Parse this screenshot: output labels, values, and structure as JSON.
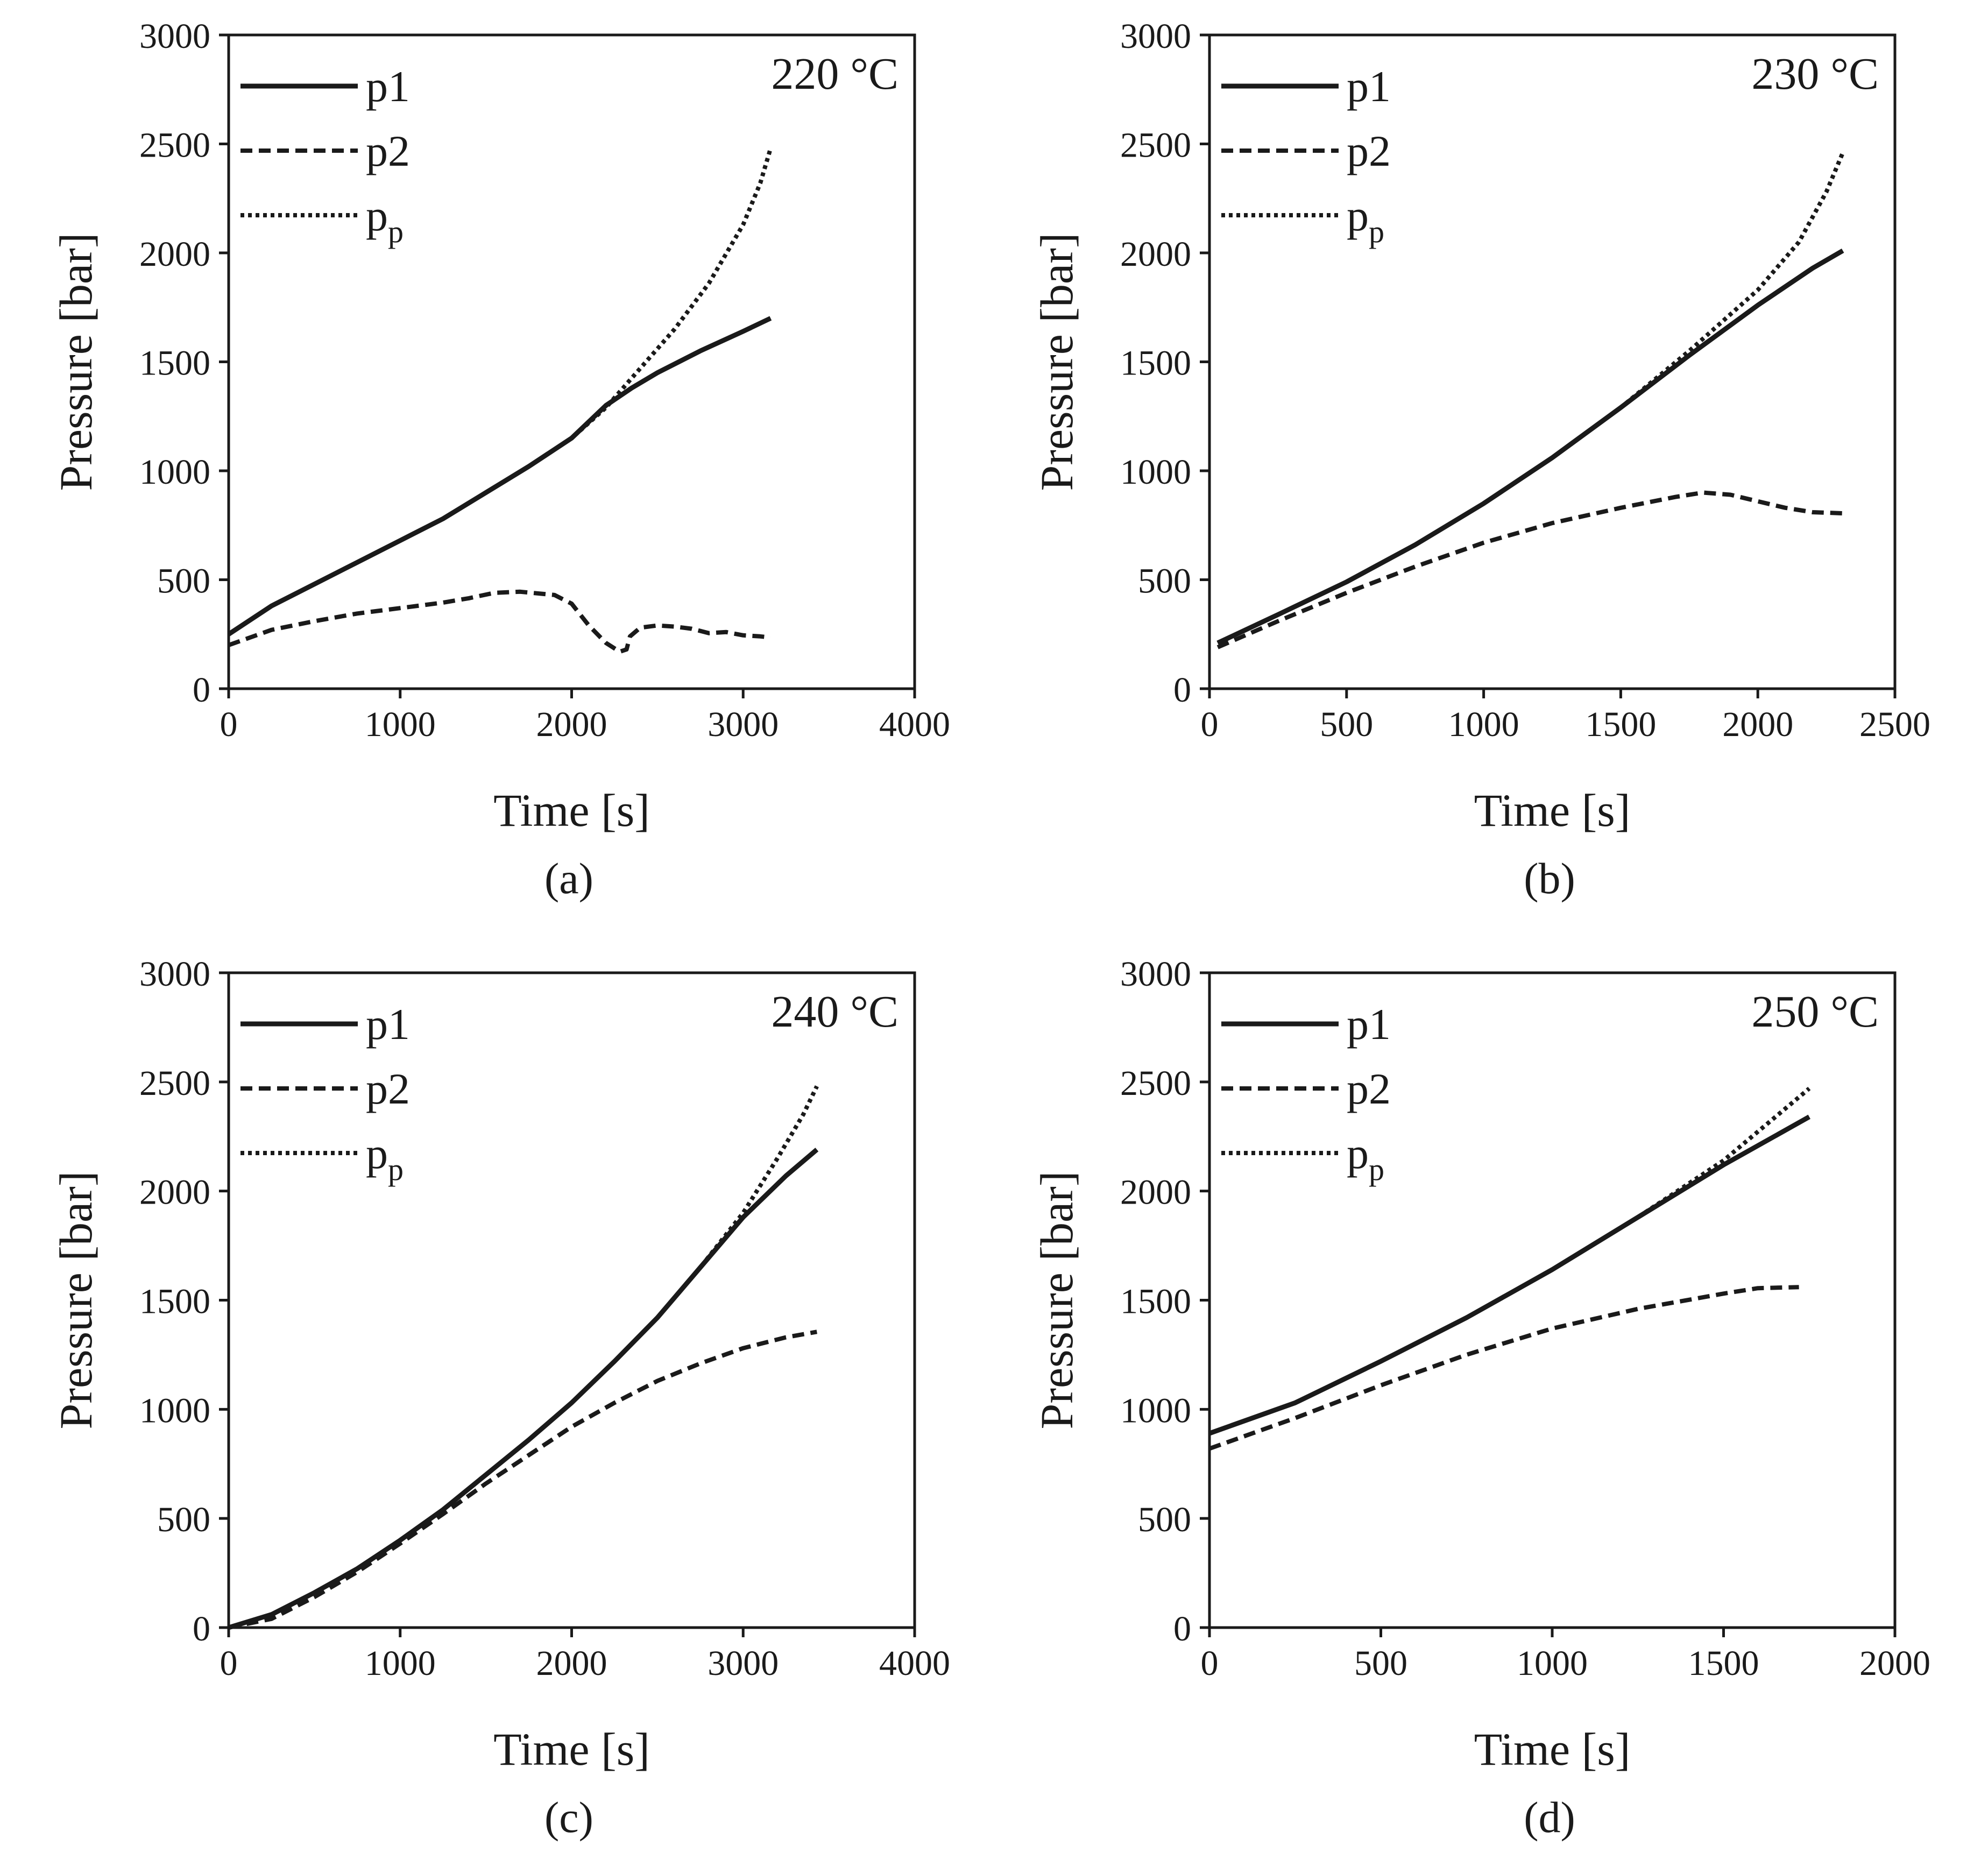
{
  "figure_captions": [
    "(a)",
    "(b)",
    "(c)",
    "(d)"
  ],
  "colors": {
    "line": "#1a1a1a",
    "background": "#ffffff"
  },
  "chart_data": [
    {
      "type": "line",
      "panel": "(a)",
      "title": "220 °C",
      "xlabel": "Time [s]",
      "ylabel": "Pressure [bar]",
      "xlim": [
        0,
        4000
      ],
      "ylim": [
        0,
        3000
      ],
      "xticks": [
        0,
        1000,
        2000,
        3000,
        4000
      ],
      "yticks": [
        0,
        500,
        1000,
        1500,
        2000,
        2500,
        3000
      ],
      "legend": {
        "position": "top-left",
        "entries": [
          {
            "main": "p1",
            "sub": "",
            "style": "solid"
          },
          {
            "main": "p2",
            "sub": "",
            "style": "dashed"
          },
          {
            "main": "p",
            "sub": "p",
            "style": "dotted"
          }
        ]
      },
      "series": [
        {
          "name": "p1",
          "style": "solid",
          "points": [
            [
              0,
              250
            ],
            [
              250,
              380
            ],
            [
              500,
              480
            ],
            [
              750,
              580
            ],
            [
              1000,
              680
            ],
            [
              1250,
              780
            ],
            [
              1500,
              900
            ],
            [
              1750,
              1020
            ],
            [
              2000,
              1150
            ],
            [
              2200,
              1300
            ],
            [
              2350,
              1380
            ],
            [
              2500,
              1450
            ],
            [
              2750,
              1550
            ],
            [
              3000,
              1640
            ],
            [
              3160,
              1700
            ]
          ]
        },
        {
          "name": "p2",
          "style": "dashed",
          "points": [
            [
              0,
              200
            ],
            [
              250,
              270
            ],
            [
              500,
              310
            ],
            [
              750,
              345
            ],
            [
              1000,
              370
            ],
            [
              1250,
              395
            ],
            [
              1400,
              415
            ],
            [
              1550,
              440
            ],
            [
              1700,
              445
            ],
            [
              1900,
              430
            ],
            [
              2000,
              390
            ],
            [
              2100,
              290
            ],
            [
              2200,
              210
            ],
            [
              2280,
              170
            ],
            [
              2320,
              180
            ],
            [
              2340,
              240
            ],
            [
              2400,
              280
            ],
            [
              2500,
              290
            ],
            [
              2600,
              285
            ],
            [
              2700,
              275
            ],
            [
              2800,
              255
            ],
            [
              2900,
              260
            ],
            [
              3000,
              245
            ],
            [
              3100,
              240
            ],
            [
              3160,
              235
            ]
          ]
        },
        {
          "name": "pp",
          "style": "dotted",
          "points": [
            [
              0,
              250
            ],
            [
              250,
              380
            ],
            [
              500,
              480
            ],
            [
              750,
              580
            ],
            [
              1000,
              680
            ],
            [
              1250,
              780
            ],
            [
              1500,
              900
            ],
            [
              1750,
              1020
            ],
            [
              2000,
              1150
            ],
            [
              2200,
              1290
            ],
            [
              2400,
              1470
            ],
            [
              2600,
              1650
            ],
            [
              2800,
              1860
            ],
            [
              3000,
              2130
            ],
            [
              3100,
              2320
            ],
            [
              3160,
              2480
            ]
          ]
        }
      ]
    },
    {
      "type": "line",
      "panel": "(b)",
      "title": "230 °C",
      "xlabel": "Time [s]",
      "ylabel": "Pressure [bar]",
      "xlim": [
        0,
        2500
      ],
      "ylim": [
        0,
        3000
      ],
      "xticks": [
        0,
        500,
        1000,
        1500,
        2000,
        2500
      ],
      "yticks": [
        0,
        500,
        1000,
        1500,
        2000,
        2500,
        3000
      ],
      "legend": {
        "position": "top-left",
        "entries": [
          {
            "main": "p1",
            "sub": "",
            "style": "solid"
          },
          {
            "main": "p2",
            "sub": "",
            "style": "dashed"
          },
          {
            "main": "p",
            "sub": "p",
            "style": "dotted"
          }
        ]
      },
      "series": [
        {
          "name": "p1",
          "style": "solid",
          "points": [
            [
              30,
              210
            ],
            [
              250,
              340
            ],
            [
              500,
              490
            ],
            [
              750,
              660
            ],
            [
              1000,
              850
            ],
            [
              1250,
              1060
            ],
            [
              1500,
              1290
            ],
            [
              1750,
              1530
            ],
            [
              2000,
              1760
            ],
            [
              2200,
              1930
            ],
            [
              2310,
              2010
            ]
          ]
        },
        {
          "name": "p2",
          "style": "dashed",
          "points": [
            [
              30,
              190
            ],
            [
              250,
              310
            ],
            [
              500,
              440
            ],
            [
              750,
              560
            ],
            [
              1000,
              670
            ],
            [
              1250,
              760
            ],
            [
              1500,
              830
            ],
            [
              1700,
              880
            ],
            [
              1800,
              900
            ],
            [
              1900,
              890
            ],
            [
              2000,
              860
            ],
            [
              2100,
              830
            ],
            [
              2200,
              810
            ],
            [
              2310,
              805
            ]
          ]
        },
        {
          "name": "pp",
          "style": "dotted",
          "points": [
            [
              30,
              210
            ],
            [
              250,
              340
            ],
            [
              500,
              490
            ],
            [
              750,
              660
            ],
            [
              1000,
              850
            ],
            [
              1250,
              1060
            ],
            [
              1500,
              1290
            ],
            [
              1750,
              1550
            ],
            [
              2000,
              1830
            ],
            [
              2150,
              2050
            ],
            [
              2250,
              2280
            ],
            [
              2310,
              2460
            ]
          ]
        }
      ]
    },
    {
      "type": "line",
      "panel": "(c)",
      "title": "240 °C",
      "xlabel": "Time [s]",
      "ylabel": "Pressure [bar]",
      "xlim": [
        0,
        4000
      ],
      "ylim": [
        0,
        3000
      ],
      "xticks": [
        0,
        1000,
        2000,
        3000,
        4000
      ],
      "yticks": [
        0,
        500,
        1000,
        1500,
        2000,
        2500,
        3000
      ],
      "legend": {
        "position": "top-left",
        "entries": [
          {
            "main": "p1",
            "sub": "",
            "style": "solid"
          },
          {
            "main": "p2",
            "sub": "",
            "style": "dashed"
          },
          {
            "main": "p",
            "sub": "p",
            "style": "dotted"
          }
        ]
      },
      "series": [
        {
          "name": "p1",
          "style": "solid",
          "points": [
            [
              0,
              0
            ],
            [
              250,
              60
            ],
            [
              500,
              160
            ],
            [
              750,
              270
            ],
            [
              1000,
              400
            ],
            [
              1250,
              540
            ],
            [
              1500,
              700
            ],
            [
              1750,
              860
            ],
            [
              2000,
              1030
            ],
            [
              2250,
              1220
            ],
            [
              2500,
              1420
            ],
            [
              2750,
              1650
            ],
            [
              3000,
              1880
            ],
            [
              3250,
              2070
            ],
            [
              3430,
              2190
            ]
          ]
        },
        {
          "name": "p2",
          "style": "dashed",
          "points": [
            [
              0,
              0
            ],
            [
              250,
              40
            ],
            [
              500,
              140
            ],
            [
              750,
              255
            ],
            [
              1000,
              385
            ],
            [
              1250,
              520
            ],
            [
              1500,
              660
            ],
            [
              1750,
              790
            ],
            [
              2000,
              920
            ],
            [
              2250,
              1030
            ],
            [
              2500,
              1130
            ],
            [
              2750,
              1210
            ],
            [
              3000,
              1280
            ],
            [
              3250,
              1330
            ],
            [
              3430,
              1355
            ]
          ]
        },
        {
          "name": "pp",
          "style": "dotted",
          "points": [
            [
              0,
              0
            ],
            [
              250,
              60
            ],
            [
              500,
              160
            ],
            [
              750,
              270
            ],
            [
              1000,
              400
            ],
            [
              1250,
              540
            ],
            [
              1500,
              700
            ],
            [
              1750,
              860
            ],
            [
              2000,
              1030
            ],
            [
              2250,
              1220
            ],
            [
              2500,
              1420
            ],
            [
              2750,
              1650
            ],
            [
              3000,
              1900
            ],
            [
              3200,
              2150
            ],
            [
              3350,
              2350
            ],
            [
              3430,
              2480
            ]
          ]
        }
      ]
    },
    {
      "type": "line",
      "panel": "(d)",
      "title": "250 °C",
      "xlabel": "Time [s]",
      "ylabel": "Pressure [bar]",
      "xlim": [
        0,
        2000
      ],
      "ylim": [
        0,
        3000
      ],
      "xticks": [
        0,
        500,
        1000,
        1500,
        2000
      ],
      "yticks": [
        0,
        500,
        1000,
        1500,
        2000,
        2500,
        3000
      ],
      "legend": {
        "position": "top-left",
        "entries": [
          {
            "main": "p1",
            "sub": "",
            "style": "solid"
          },
          {
            "main": "p2",
            "sub": "",
            "style": "dashed"
          },
          {
            "main": "p",
            "sub": "p",
            "style": "dotted"
          }
        ]
      },
      "series": [
        {
          "name": "p1",
          "style": "solid",
          "points": [
            [
              0,
              890
            ],
            [
              250,
              1030
            ],
            [
              500,
              1220
            ],
            [
              750,
              1420
            ],
            [
              1000,
              1640
            ],
            [
              1250,
              1880
            ],
            [
              1500,
              2120
            ],
            [
              1750,
              2340
            ]
          ]
        },
        {
          "name": "p2",
          "style": "dashed",
          "points": [
            [
              0,
              820
            ],
            [
              250,
              960
            ],
            [
              500,
              1110
            ],
            [
              750,
              1250
            ],
            [
              1000,
              1370
            ],
            [
              1250,
              1460
            ],
            [
              1500,
              1530
            ],
            [
              1600,
              1555
            ],
            [
              1720,
              1560
            ]
          ]
        },
        {
          "name": "pp",
          "style": "dotted",
          "points": [
            [
              0,
              890
            ],
            [
              250,
              1030
            ],
            [
              500,
              1220
            ],
            [
              750,
              1420
            ],
            [
              1000,
              1640
            ],
            [
              1250,
              1880
            ],
            [
              1500,
              2140
            ],
            [
              1750,
              2470
            ]
          ]
        }
      ]
    }
  ]
}
